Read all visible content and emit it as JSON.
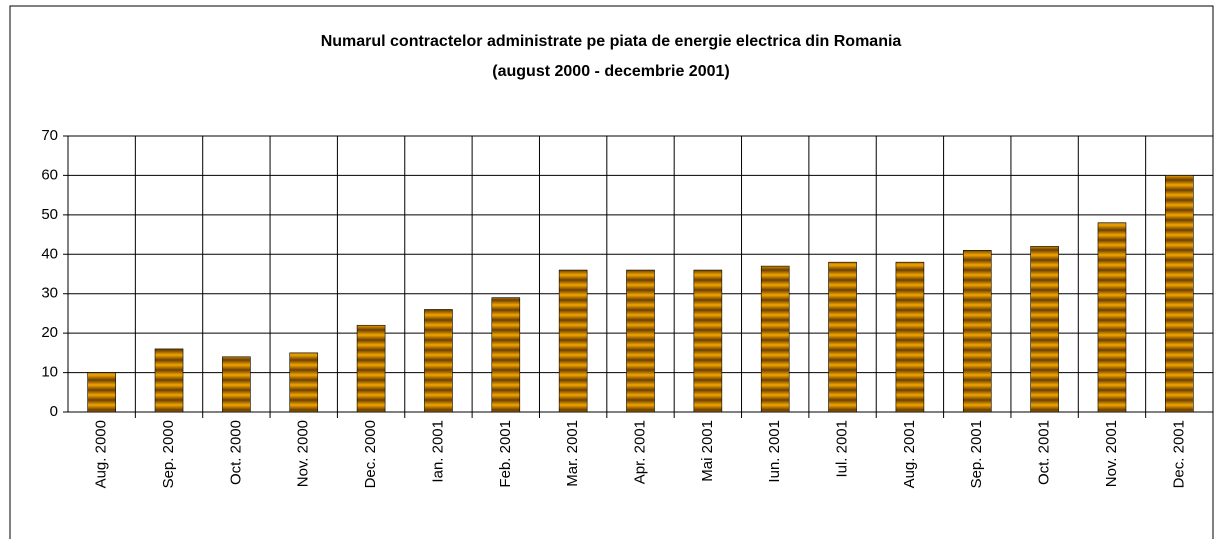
{
  "chart_data": {
    "type": "bar",
    "title": "Numarul contractelor administrate pe piata de energie electrica din Romania",
    "subtitle": "(august 2000 - decembrie 2001)",
    "categories": [
      "Aug. 2000",
      "Sep. 2000",
      "Oct. 2000",
      "Nov. 2000",
      "Dec. 2000",
      "Ian. 2001",
      "Feb. 2001",
      "Mar. 2001",
      "Apr. 2001",
      "Mai 2001",
      "Iun. 2001",
      "Iul. 2001",
      "Aug. 2001",
      "Sep. 2001",
      "Oct. 2001",
      "Nov. 2001",
      "Dec. 2001"
    ],
    "values": [
      10,
      16,
      14,
      15,
      22,
      26,
      29,
      36,
      36,
      36,
      37,
      38,
      38,
      41,
      42,
      48,
      60
    ],
    "color": "#f2a400",
    "ylim": [
      0,
      70
    ],
    "yticks": [
      0,
      10,
      20,
      30,
      40,
      50,
      60,
      70
    ],
    "grid": true
  }
}
